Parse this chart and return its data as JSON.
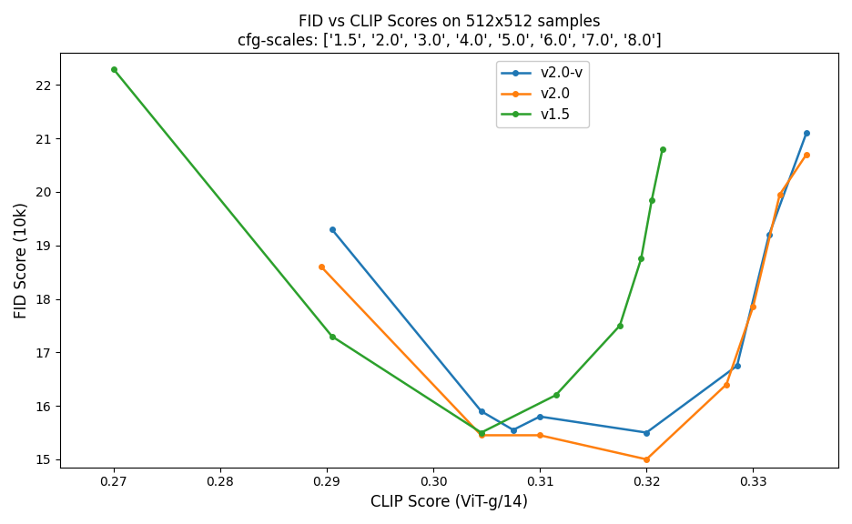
{
  "title_line1": "FID vs CLIP Scores on 512x512 samples",
  "title_line2": "cfg-scales: ['1.5', '2.0', '3.0', '4.0', '5.0', '6.0', '7.0', '8.0']",
  "xlabel": "CLIP Score (ViT-g/14)",
  "ylabel": "FID Score (10k)",
  "series": [
    {
      "label": "v2.0-v",
      "color": "#1f77b4",
      "clip": [
        0.2905,
        0.3045,
        0.3075,
        0.31,
        0.32,
        0.3285,
        0.3315,
        0.335
      ],
      "fid": [
        19.3,
        15.9,
        15.55,
        15.8,
        15.5,
        16.75,
        19.2,
        21.1
      ]
    },
    {
      "label": "v2.0",
      "color": "#ff7f0e",
      "clip": [
        0.2895,
        0.3045,
        0.31,
        0.32,
        0.3275,
        0.33,
        0.3325,
        0.335
      ],
      "fid": [
        18.6,
        15.45,
        15.45,
        15.0,
        16.4,
        17.85,
        19.95,
        20.7
      ]
    },
    {
      "label": "v1.5",
      "color": "#2ca02c",
      "clip": [
        0.27,
        0.2905,
        0.3045,
        0.3115,
        0.3175,
        0.3195,
        0.3205,
        0.3215
      ],
      "fid": [
        22.3,
        17.3,
        15.5,
        16.2,
        17.5,
        18.75,
        19.85,
        20.8
      ]
    }
  ],
  "xlim": [
    0.265,
    0.338
  ],
  "ylim": [
    14.85,
    22.6
  ],
  "xticks": [
    0.27,
    0.28,
    0.29,
    0.3,
    0.31,
    0.32,
    0.33
  ],
  "background_color": "#ffffff",
  "plot_background": "#ffffff",
  "legend_loc": "upper center"
}
